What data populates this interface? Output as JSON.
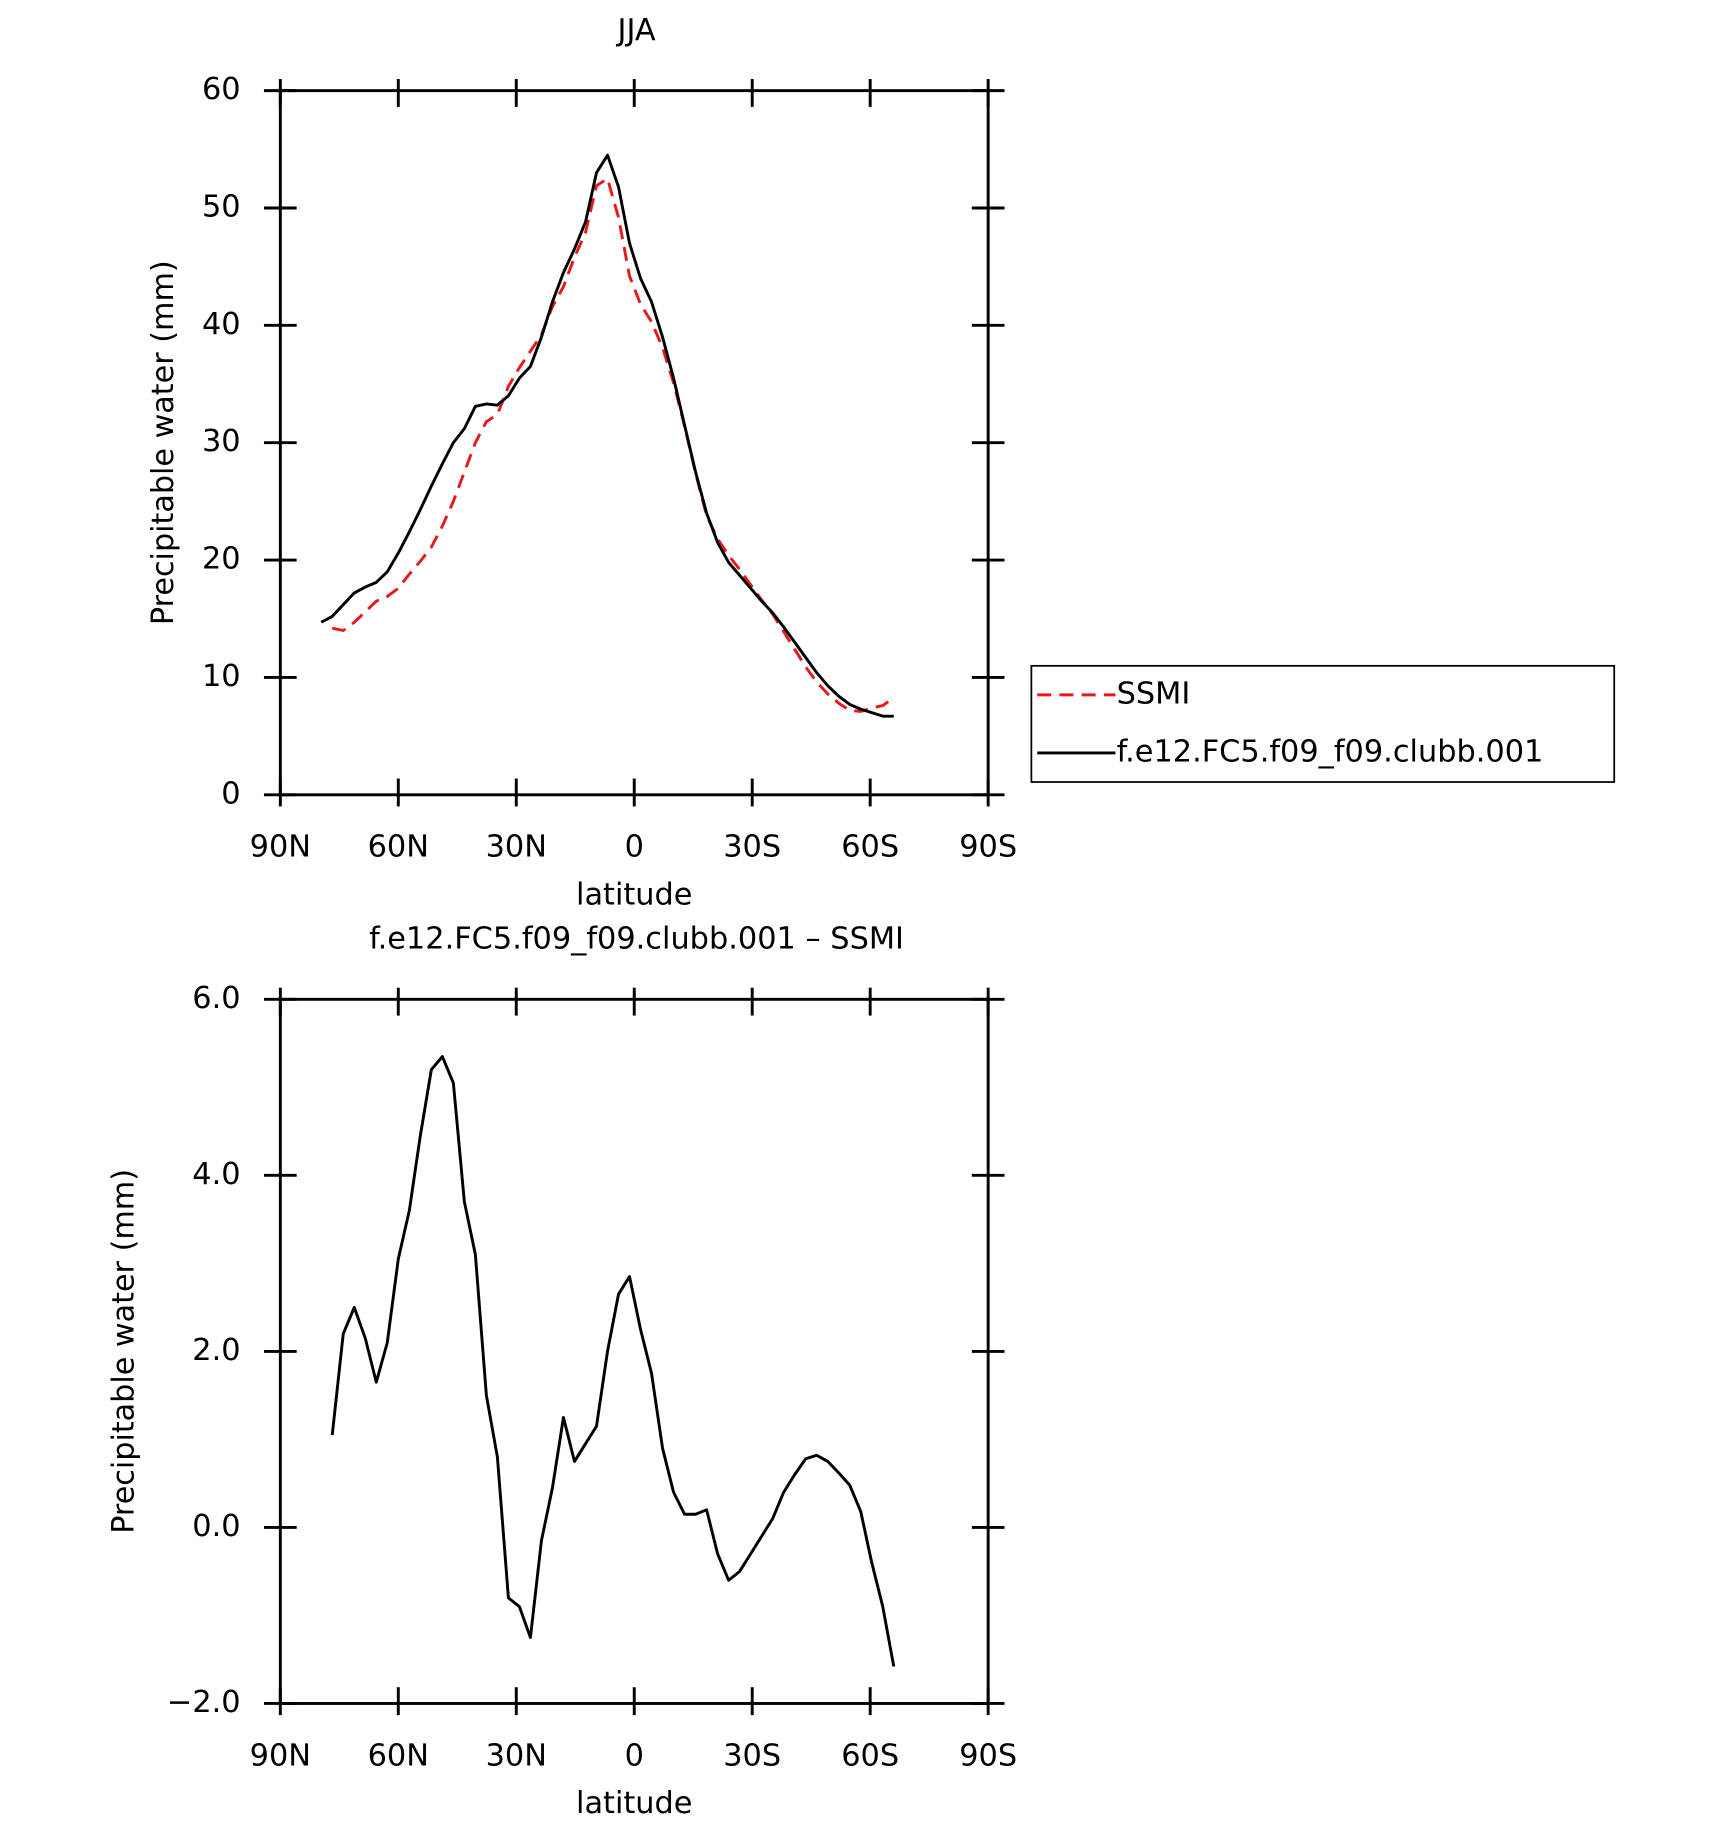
{
  "chart_data": [
    {
      "type": "line",
      "title": "JJA",
      "x_label": "latitude",
      "y_label": "Precipitable water (mm)",
      "x": [
        79.6,
        76.8,
        74.0,
        71.2,
        68.4,
        65.6,
        62.8,
        60.0,
        57.2,
        54.4,
        51.6,
        48.8,
        46.0,
        43.2,
        40.4,
        37.6,
        34.8,
        32.0,
        29.2,
        26.4,
        23.6,
        20.8,
        18.0,
        15.2,
        12.4,
        9.6,
        6.8,
        4.0,
        1.2,
        -1.6,
        -4.4,
        -7.2,
        -10.0,
        -12.8,
        -15.6,
        -18.4,
        -21.2,
        -24.0,
        -26.8,
        -29.6,
        -32.4,
        -35.2,
        -38.0,
        -40.8,
        -43.6,
        -46.4,
        -49.2,
        -52.0,
        -54.8,
        -57.6,
        -60.4,
        -63.2,
        -66.0
      ],
      "series": [
        {
          "name": "SSMI",
          "color": "#e8191c",
          "line_style": "dashed",
          "values": [
            null,
            14.2,
            14.0,
            14.7,
            15.6,
            16.5,
            16.9,
            17.6,
            18.8,
            19.9,
            21.1,
            22.9,
            25.0,
            27.5,
            30.0,
            31.8,
            32.4,
            34.8,
            36.4,
            37.8,
            39.2,
            41.6,
            43.3,
            45.8,
            47.9,
            51.9,
            52.5,
            49.2,
            44.2,
            41.8,
            40.3,
            38.1,
            35.1,
            31.4,
            27.4,
            23.8,
            21.8,
            20.4,
            19.2,
            17.9,
            16.6,
            15.4,
            13.9,
            12.4,
            10.9,
            9.6,
            8.6,
            7.8,
            7.2,
            7.1,
            7.4,
            7.6,
            8.3
          ]
        },
        {
          "name": "f.e12.FC5.f09_f09.clubb.001",
          "color": "#000000",
          "line_style": "solid",
          "values": [
            14.7,
            15.2,
            16.2,
            17.2,
            17.7,
            18.1,
            19.0,
            20.6,
            22.4,
            24.3,
            26.3,
            28.2,
            30.0,
            31.2,
            33.1,
            33.3,
            33.2,
            34.0,
            35.5,
            36.5,
            39.0,
            42.0,
            44.5,
            46.5,
            48.8,
            53.0,
            54.5,
            51.8,
            47.0,
            44.0,
            42.0,
            39.0,
            35.5,
            31.5,
            27.5,
            24.0,
            21.5,
            19.8,
            18.7,
            17.6,
            16.5,
            15.5,
            14.3,
            13.0,
            11.7,
            10.4,
            9.3,
            8.4,
            7.7,
            7.3,
            7.0,
            6.7,
            6.7
          ]
        }
      ],
      "xlim": [
        90,
        -90
      ],
      "xticks": [
        {
          "value": 90,
          "label": "90N"
        },
        {
          "value": 60,
          "label": "60N"
        },
        {
          "value": 30,
          "label": "30N"
        },
        0,
        {
          "value": -30,
          "label": "30S"
        },
        {
          "value": -60,
          "label": "60S"
        },
        {
          "value": -90,
          "label": "90S"
        }
      ],
      "ylim": [
        0,
        60
      ],
      "yticks": [
        0,
        10,
        20,
        30,
        40,
        50,
        60
      ],
      "legend": true,
      "legend_position": "right"
    },
    {
      "type": "line",
      "title": "f.e12.FC5.f09_f09.clubb.001 – SSMI",
      "x_label": "latitude",
      "y_label": "Precipitable water (mm)",
      "x": [
        79.6,
        76.8,
        74.0,
        71.2,
        68.4,
        65.6,
        62.8,
        60.0,
        57.2,
        54.4,
        51.6,
        48.8,
        46.0,
        43.2,
        40.4,
        37.6,
        34.8,
        32.0,
        29.2,
        26.4,
        23.6,
        20.8,
        18.0,
        15.2,
        12.4,
        9.6,
        6.8,
        4.0,
        1.2,
        -1.6,
        -4.4,
        -7.2,
        -10.0,
        -12.8,
        -15.6,
        -18.4,
        -21.2,
        -24.0,
        -26.8,
        -29.6,
        -32.4,
        -35.2,
        -38.0,
        -40.8,
        -43.6,
        -46.4,
        -49.2,
        -52.0,
        -54.8,
        -57.6,
        -60.4,
        -63.2,
        -66.0
      ],
      "series": [
        {
          "color": "#000000",
          "line_style": "solid",
          "values": [
            null,
            1.05,
            2.2,
            2.5,
            2.15,
            1.65,
            2.1,
            3.05,
            3.6,
            4.45,
            5.2,
            5.35,
            5.05,
            3.7,
            3.1,
            1.5,
            0.8,
            -0.8,
            -0.9,
            -1.25,
            -0.15,
            0.45,
            1.25,
            0.75,
            0.95,
            1.15,
            2.0,
            2.65,
            2.85,
            2.25,
            1.75,
            0.9,
            0.4,
            0.15,
            0.15,
            0.2,
            -0.3,
            -0.6,
            -0.5,
            -0.3,
            -0.1,
            0.1,
            0.4,
            0.6,
            0.78,
            0.82,
            0.75,
            0.62,
            0.48,
            0.18,
            -0.4,
            -0.9,
            -1.58
          ]
        }
      ],
      "xlim": [
        90,
        -90
      ],
      "xticks": [
        {
          "value": 90,
          "label": "90N"
        },
        {
          "value": 60,
          "label": "60N"
        },
        {
          "value": 30,
          "label": "30N"
        },
        0,
        {
          "value": -30,
          "label": "30S"
        },
        {
          "value": -60,
          "label": "60S"
        },
        {
          "value": -90,
          "label": "90S"
        }
      ],
      "ylim": [
        -2,
        6
      ],
      "yticks": [
        {
          "value": -2,
          "label": "−2.0"
        },
        {
          "value": 0,
          "label": "0.0"
        },
        {
          "value": 2,
          "label": "2.0"
        },
        {
          "value": 4,
          "label": "4.0"
        },
        {
          "value": 6,
          "label": "6.0"
        }
      ],
      "legend": false
    }
  ]
}
